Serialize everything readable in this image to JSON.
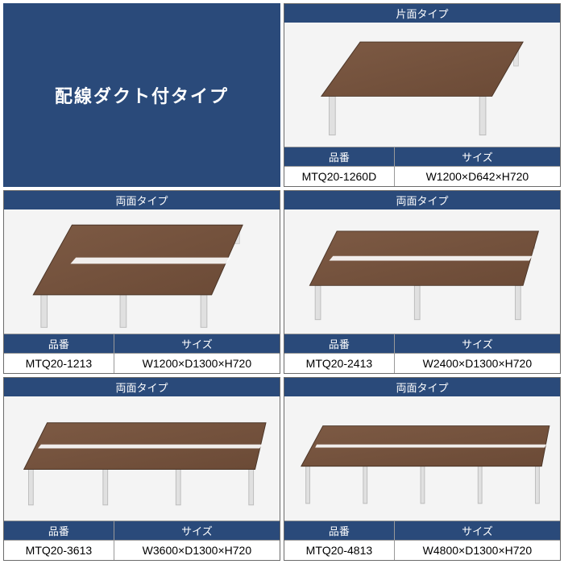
{
  "colors": {
    "primary": "#2a4a7a",
    "border": "#6b6b6b",
    "image_bg": "#f4f4f4",
    "wood": "#6b4a36",
    "wood_light": "#7d5a44",
    "leg": "#e0e0e0",
    "leg_edge": "#bcbcbc"
  },
  "title": {
    "text": "配線ダクト付タイプ",
    "fontsize": 22,
    "color": "#ffffff"
  },
  "labels": {
    "hinban": "品番",
    "size": "サイズ"
  },
  "products": [
    {
      "type_label": "片面タイプ",
      "hinban": "MTQ20-1260D",
      "size": "W1200×D642×H720",
      "shape": "single"
    },
    {
      "type_label": "両面タイプ",
      "hinban": "MTQ20-1213",
      "size": "W1200×D1300×H720",
      "shape": "double_square"
    },
    {
      "type_label": "両面タイプ",
      "hinban": "MTQ20-2413",
      "size": "W2400×D1300×H720",
      "shape": "double_wide"
    },
    {
      "type_label": "両面タイプ",
      "hinban": "MTQ20-3613",
      "size": "W3600×D1300×H720",
      "shape": "double_long"
    },
    {
      "type_label": "両面タイプ",
      "hinban": "MTQ20-4813",
      "size": "W4800×D1300×H720",
      "shape": "double_xlong"
    }
  ]
}
